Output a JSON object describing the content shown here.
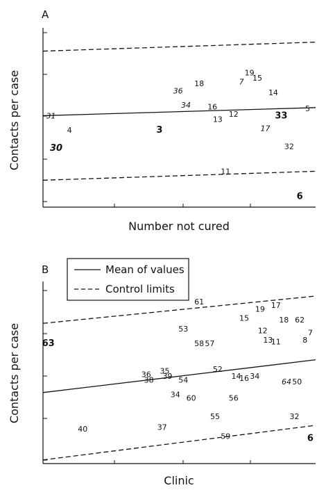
{
  "legend": {
    "mean_label": "Mean of values",
    "control_label": "Control limits"
  },
  "chart_data": [
    {
      "type": "scatter",
      "panel_label": "A",
      "xlabel": "Number not cured",
      "ylabel": "Contacts per case",
      "line_styles": {
        "mean": "solid",
        "control": "dashed"
      },
      "points": [
        {
          "label": "31",
          "x": 0.3,
          "y": 5.1,
          "style": "italic"
        },
        {
          "label": "4",
          "x": 1.0,
          "y": 4.3,
          "style": "normal"
        },
        {
          "label": "30",
          "x": 0.5,
          "y": 3.3,
          "style": "bold-italic"
        },
        {
          "label": "3",
          "x": 4.4,
          "y": 4.3,
          "style": "bold"
        },
        {
          "label": "36",
          "x": 5.1,
          "y": 6.5,
          "style": "italic"
        },
        {
          "label": "34",
          "x": 5.4,
          "y": 5.7,
          "style": "italic"
        },
        {
          "label": "18",
          "x": 5.9,
          "y": 6.9,
          "style": "normal"
        },
        {
          "label": "16",
          "x": 6.4,
          "y": 5.6,
          "style": "normal"
        },
        {
          "label": "13",
          "x": 6.6,
          "y": 4.9,
          "style": "normal"
        },
        {
          "label": "12",
          "x": 7.2,
          "y": 5.2,
          "style": "normal"
        },
        {
          "label": "7",
          "x": 7.5,
          "y": 7.0,
          "style": "italic"
        },
        {
          "label": "19",
          "x": 7.8,
          "y": 7.5,
          "style": "normal"
        },
        {
          "label": "15",
          "x": 8.1,
          "y": 7.2,
          "style": "normal"
        },
        {
          "label": "14",
          "x": 8.7,
          "y": 6.4,
          "style": "normal"
        },
        {
          "label": "33",
          "x": 9.0,
          "y": 5.1,
          "style": "bold"
        },
        {
          "label": "17",
          "x": 8.4,
          "y": 4.4,
          "style": "italic"
        },
        {
          "label": "32",
          "x": 9.3,
          "y": 3.4,
          "style": "normal"
        },
        {
          "label": "11",
          "x": 6.9,
          "y": 2.0,
          "style": "normal"
        },
        {
          "label": "5",
          "x": 10.0,
          "y": 5.5,
          "style": "normal"
        },
        {
          "label": "6",
          "x": 9.7,
          "y": 0.6,
          "style": "bold"
        }
      ],
      "mean_line": [
        [
          0,
          5.1
        ],
        [
          10.3,
          5.55
        ]
      ],
      "upper_control_line": [
        [
          0,
          8.7
        ],
        [
          10.3,
          9.2
        ]
      ],
      "lower_control_line": [
        [
          0,
          1.5
        ],
        [
          10.3,
          2.0
        ]
      ],
      "xlim": [
        0,
        10.3
      ],
      "ylim": [
        0,
        10
      ]
    },
    {
      "type": "scatter",
      "panel_label": "B",
      "xlabel": "Clinic",
      "ylabel": "Contacts per case",
      "line_styles": {
        "mean": "solid",
        "control": "dashed"
      },
      "points": [
        {
          "label": "63",
          "x": 0.2,
          "y": 6.6,
          "style": "bold"
        },
        {
          "label": "40",
          "x": 1.5,
          "y": 1.9,
          "style": "normal"
        },
        {
          "label": "36",
          "x": 3.9,
          "y": 4.9,
          "style": "normal"
        },
        {
          "label": "38",
          "x": 4.0,
          "y": 4.6,
          "style": "normal"
        },
        {
          "label": "35",
          "x": 4.6,
          "y": 5.1,
          "style": "normal"
        },
        {
          "label": "39",
          "x": 4.7,
          "y": 4.8,
          "style": "normal"
        },
        {
          "label": "54",
          "x": 5.3,
          "y": 4.6,
          "style": "normal"
        },
        {
          "label": "34",
          "x": 5.0,
          "y": 3.8,
          "style": "normal"
        },
        {
          "label": "60",
          "x": 5.6,
          "y": 3.6,
          "style": "normal"
        },
        {
          "label": "37",
          "x": 4.5,
          "y": 2.0,
          "style": "normal"
        },
        {
          "label": "53",
          "x": 5.3,
          "y": 7.4,
          "style": "normal"
        },
        {
          "label": "61",
          "x": 5.9,
          "y": 8.9,
          "style": "normal"
        },
        {
          "label": "58",
          "x": 5.9,
          "y": 6.6,
          "style": "normal"
        },
        {
          "label": "57",
          "x": 6.3,
          "y": 6.6,
          "style": "normal"
        },
        {
          "label": "52",
          "x": 6.6,
          "y": 5.2,
          "style": "normal"
        },
        {
          "label": "55",
          "x": 6.5,
          "y": 2.6,
          "style": "normal"
        },
        {
          "label": "59",
          "x": 6.9,
          "y": 1.5,
          "style": "normal"
        },
        {
          "label": "56",
          "x": 7.2,
          "y": 3.6,
          "style": "normal"
        },
        {
          "label": "14",
          "x": 7.3,
          "y": 4.8,
          "style": "normal"
        },
        {
          "label": "16",
          "x": 7.6,
          "y": 4.7,
          "style": "normal"
        },
        {
          "label": "34",
          "x": 8.0,
          "y": 4.8,
          "style": "normal"
        },
        {
          "label": "15",
          "x": 7.6,
          "y": 8.0,
          "style": "normal"
        },
        {
          "label": "19",
          "x": 8.2,
          "y": 8.5,
          "style": "normal"
        },
        {
          "label": "17",
          "x": 8.8,
          "y": 8.7,
          "style": "normal"
        },
        {
          "label": "18",
          "x": 9.1,
          "y": 7.9,
          "style": "normal"
        },
        {
          "label": "62",
          "x": 9.7,
          "y": 7.9,
          "style": "normal"
        },
        {
          "label": "12",
          "x": 8.3,
          "y": 7.3,
          "style": "normal"
        },
        {
          "label": "13",
          "x": 8.5,
          "y": 6.8,
          "style": "normal"
        },
        {
          "label": "11",
          "x": 8.8,
          "y": 6.7,
          "style": "normal"
        },
        {
          "label": "8",
          "x": 9.9,
          "y": 6.8,
          "style": "normal"
        },
        {
          "label": "7",
          "x": 10.1,
          "y": 7.2,
          "style": "normal"
        },
        {
          "label": "64",
          "x": 9.2,
          "y": 4.5,
          "style": "italic"
        },
        {
          "label": "50",
          "x": 9.6,
          "y": 4.5,
          "style": "normal"
        },
        {
          "label": "32",
          "x": 9.5,
          "y": 2.6,
          "style": "normal"
        },
        {
          "label": "6",
          "x": 10.1,
          "y": 1.4,
          "style": "bold"
        }
      ],
      "mean_line": [
        [
          0,
          3.9
        ],
        [
          10.3,
          5.7
        ]
      ],
      "upper_control_line": [
        [
          0,
          7.7
        ],
        [
          10.3,
          9.2
        ]
      ],
      "lower_control_line": [
        [
          0,
          0.2
        ],
        [
          10.3,
          2.1
        ]
      ],
      "xlim": [
        0,
        10.3
      ],
      "ylim": [
        0,
        10
      ]
    }
  ]
}
